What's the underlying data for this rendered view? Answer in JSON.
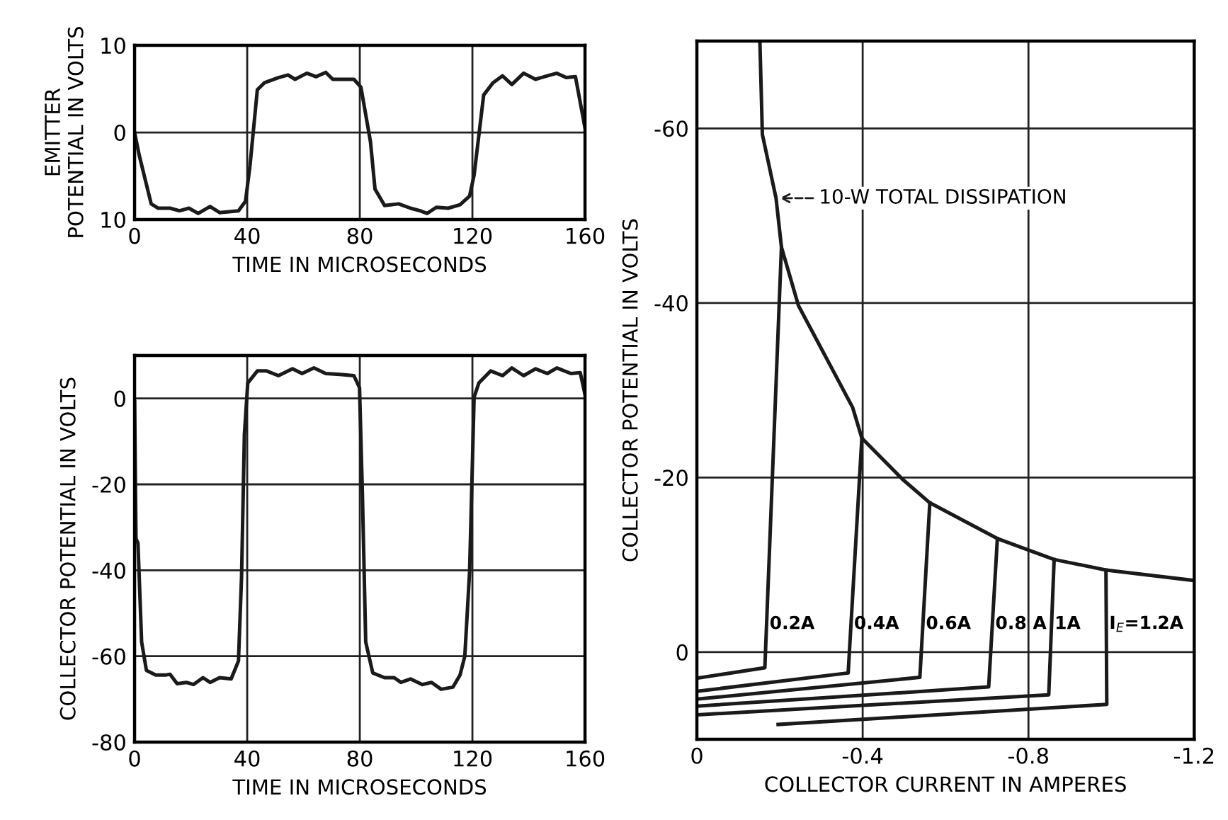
{
  "chart_data": [
    {
      "type": "line",
      "ylabel": "EMITTER\nPOTENTIAL IN VOLTS",
      "xlabel": "TIME IN MICROSECONDS",
      "xlim": [
        0,
        160
      ],
      "ylim": [
        -10,
        10
      ],
      "xticks": [
        0,
        40,
        80,
        120,
        160
      ],
      "yticks": [
        {
          "value": -10,
          "label": "10"
        },
        0,
        10
      ],
      "grid": true,
      "series": [
        {
          "color": "#1a1a1a",
          "x": [
            0,
            1.7,
            5.9,
            8.4,
            12.6,
            15.9,
            19.3,
            22.6,
            26.8,
            30.2,
            36.9,
            39.4,
            41,
            43.6,
            46.1,
            51.1,
            54.5,
            57,
            61.2,
            64.5,
            67.9,
            70.4,
            77.9,
            80.4,
            83.8,
            85.4,
            88.8,
            93.8,
            98,
            101.4,
            103.9,
            107.2,
            111.4,
            115.6,
            119,
            120.6,
            124,
            127.3,
            130.7,
            134,
            138.2,
            142.4,
            146.6,
            150,
            153.3,
            156.6,
            160
          ],
          "values": [
            0,
            -2.7,
            -8.2,
            -8.7,
            -8.7,
            -9,
            -8.7,
            -9.3,
            -8.5,
            -9.2,
            -9,
            -7.9,
            -3.8,
            4.9,
            5.7,
            6.3,
            6.6,
            6.1,
            6.8,
            6.4,
            6.9,
            6.1,
            6.1,
            5.2,
            -1.1,
            -6.5,
            -8.4,
            -8.2,
            -8.7,
            -9,
            -9.3,
            -8.6,
            -8.7,
            -8.3,
            -7.3,
            -4.9,
            4.3,
            5.7,
            6.5,
            5.5,
            6.8,
            6.1,
            6.5,
            6.8,
            6.3,
            6.4,
            0.5
          ]
        }
      ]
    },
    {
      "type": "line",
      "ylabel": "COLLECTOR POTENTIAL IN VOLTS",
      "xlabel": "TIME IN MICROSECONDS",
      "xlim": [
        0,
        160
      ],
      "ylim": [
        -80,
        10
      ],
      "xticks": [
        0,
        40,
        80,
        120,
        160
      ],
      "yticks": [
        -80,
        -60,
        -40,
        -20,
        0
      ],
      "grid": true,
      "series": [
        {
          "color": "#1a1a1a",
          "x": [
            0,
            0.5,
            1.2,
            2.5,
            4.2,
            7.5,
            10.9,
            12.6,
            15.1,
            18.4,
            20.9,
            24.3,
            26.8,
            30.2,
            34.3,
            36.9,
            38,
            39,
            40.2,
            43.6,
            46.9,
            51.1,
            56.1,
            59.5,
            63.7,
            67.9,
            72.9,
            77.9,
            79.9,
            80.9,
            82.1,
            84.6,
            88.8,
            92.2,
            94.6,
            98,
            102.2,
            105.5,
            108.9,
            113.1,
            115.6,
            117.3,
            119,
            120.6,
            122.3,
            126.5,
            130.7,
            134,
            138.2,
            142.4,
            146.6,
            150,
            155,
            158.3,
            160
          ],
          "values": [
            -0.8,
            -32.6,
            -33.7,
            -56.7,
            -63.3,
            -64.4,
            -64.4,
            -64.2,
            -66.4,
            -66.1,
            -66.6,
            -65,
            -66.1,
            -65,
            -65.3,
            -61.1,
            -41.4,
            -8.5,
            3.6,
            6.4,
            6.4,
            5.3,
            6.9,
            5.8,
            7.1,
            5.8,
            5.6,
            5.3,
            2.5,
            -21.6,
            -56.7,
            -63.9,
            -65,
            -65,
            -66.1,
            -65.3,
            -66.6,
            -66.1,
            -67.7,
            -67.2,
            -64.4,
            -60,
            -40.3,
            0.3,
            3.6,
            6.4,
            5.3,
            7.1,
            5.3,
            6.9,
            5.8,
            7.1,
            5.8,
            6,
            0.9
          ]
        }
      ]
    },
    {
      "type": "line",
      "ylabel": "COLLECTOR POTENTIAL IN VOLTS",
      "xlabel": "COLLECTOR CURRENT IN AMPERES",
      "xlim": [
        0,
        -1.2
      ],
      "ylim": [
        10,
        -70
      ],
      "xticks": [
        0,
        -0.4,
        -0.8,
        -1.2
      ],
      "yticks": [
        -60,
        -40,
        -20,
        0
      ],
      "grid": true,
      "annotations": [
        {
          "text": "10-W TOTAL DISSIPATION",
          "x": -0.19,
          "y": -52
        }
      ],
      "series": [
        {
          "color": "#1a1a1a",
          "x": [
            -0.152,
            -0.158,
            -0.191,
            -0.204,
            -0.245,
            -0.376,
            -0.398,
            -0.496,
            -0.562,
            -0.725,
            -0.862,
            -0.987,
            -1.199
          ],
          "values": [
            -70,
            -59.3,
            -52,
            -46.4,
            -39.7,
            -28,
            -24.5,
            -19.8,
            -17.1,
            -13,
            -10.6,
            -9.4,
            -8.2
          ]
        },
        {
          "name": "0.2A",
          "color": "#1a1a1a",
          "x": [
            0,
            -0.164,
            -0.204
          ],
          "values": [
            3,
            1.8,
            -46.4
          ]
        },
        {
          "name": "0.4A",
          "color": "#1a1a1a",
          "x": [
            0,
            -0.365,
            -0.398
          ],
          "values": [
            4.5,
            2.4,
            -24.5
          ]
        },
        {
          "name": "0.6A",
          "color": "#1a1a1a",
          "x": [
            0,
            -0.538,
            -0.562
          ],
          "values": [
            5.4,
            2.9,
            -17.1
          ]
        },
        {
          "name": "0.8 A",
          "color": "#1a1a1a",
          "x": [
            0,
            -0.704,
            -0.725
          ],
          "values": [
            6.2,
            4,
            -13
          ]
        },
        {
          "name": "1A",
          "color": "#1a1a1a",
          "x": [
            0,
            -0.849,
            -0.862
          ],
          "values": [
            7.2,
            4.9,
            -10.6
          ]
        },
        {
          "name": "I$_{E}$=1.2A",
          "color": "#1a1a1a",
          "x": [
            -0.196,
            -0.989,
            -0.987
          ],
          "values": [
            8.3,
            6,
            -9.4
          ]
        }
      ]
    }
  ]
}
